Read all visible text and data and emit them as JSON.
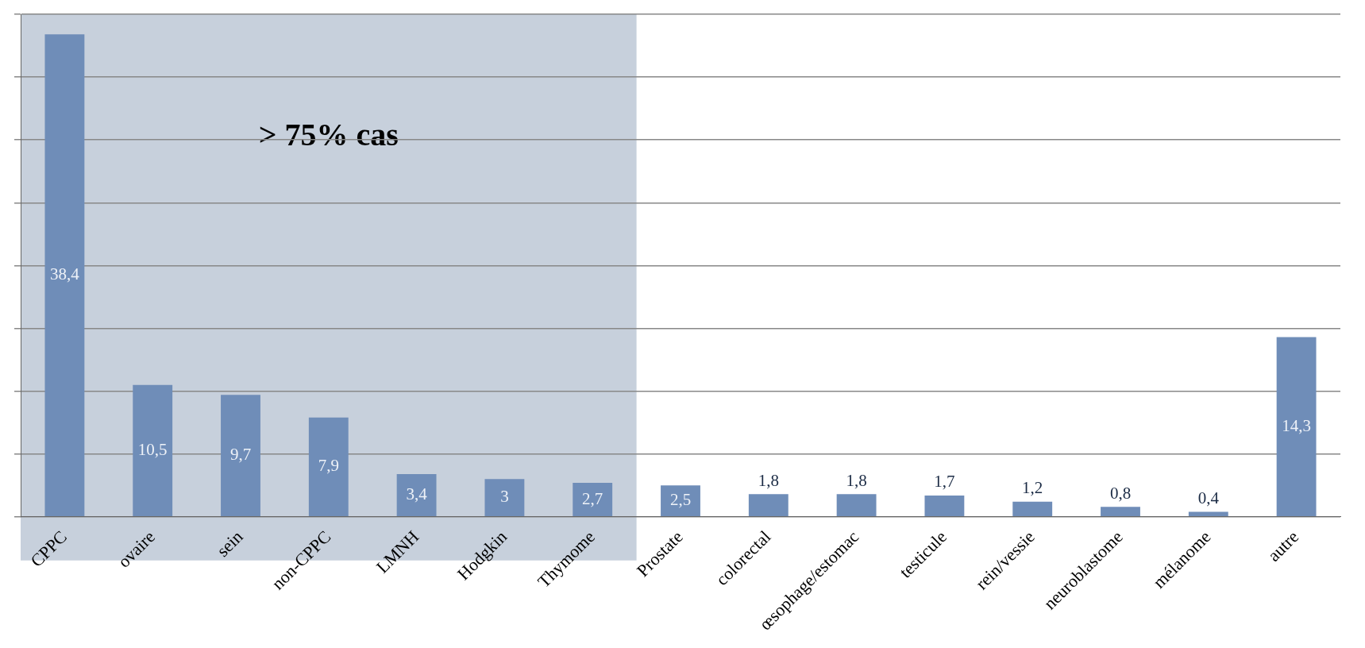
{
  "chart_data": {
    "type": "bar",
    "categories": [
      "CPPC",
      "ovaire",
      "sein",
      "non-CPPC",
      "LMNH",
      "Hodgkin",
      "Thymome",
      "Prostate",
      "colorectal",
      "œsophage/estomac",
      "testicule",
      "rein/vessie",
      "neuroblastome",
      "mélanome",
      "autre"
    ],
    "values": [
      38.4,
      10.5,
      9.7,
      7.9,
      3.4,
      3,
      2.7,
      2.5,
      1.8,
      1.8,
      1.7,
      1.2,
      0.8,
      0.4,
      14.3
    ],
    "value_labels": [
      "38,4",
      "10,5",
      "9,7",
      "7,9",
      "3,4",
      "3",
      "2,7",
      "2,5",
      "1,8",
      "1,8",
      "1,7",
      "1,2",
      "0,8",
      "0,4",
      "14,3"
    ],
    "color": "#6f8db8",
    "tick_labels": "x",
    "grid": "y",
    "bands": [
      {
        "axis": "x",
        "from": "CPPC",
        "to": "Thymome",
        "label": "> 75% cas",
        "color": "#b4c0d0"
      }
    ]
  }
}
